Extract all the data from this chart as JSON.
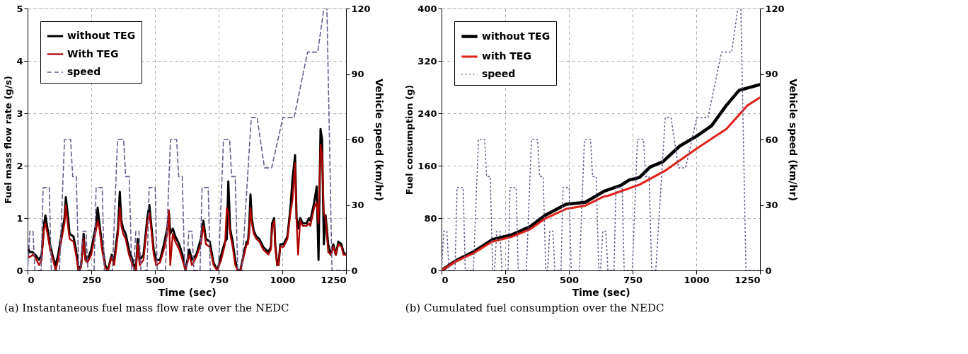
{
  "chart_data": [
    {
      "type": "line",
      "xlabel": "Time (sec)",
      "ylabel": "Fuel mass flow rate (g/s)",
      "y2label": "Vehicle speed (km/hr)",
      "annotations": [
        "(a) Instantaneous fuel mass flow rate over the NEDC"
      ],
      "xlim": [
        0,
        1250
      ],
      "xticks": [
        0,
        250,
        500,
        750,
        1000,
        1250
      ],
      "ylim": [
        0,
        5
      ],
      "yticks": [
        0,
        1,
        2,
        3,
        4,
        5
      ],
      "y2lim": [
        0,
        120
      ],
      "y2ticks": [
        0,
        30,
        60,
        90,
        120
      ],
      "grid": true,
      "legend": "top left",
      "marker": "none",
      "series": [
        {
          "name": "without TEG",
          "color": "#000000",
          "line_style": "solid",
          "x": [
            0,
            8,
            20,
            30,
            45,
            55,
            65,
            70,
            78,
            88,
            100,
            110,
            120,
            130,
            145,
            150,
            157,
            165,
            180,
            190,
            200,
            210,
            220,
            226,
            235,
            250,
            270,
            275,
            282,
            292,
            305,
            315,
            330,
            340,
            355,
            362,
            368,
            375,
            385,
            398,
            412,
            425,
            432,
            440,
            455,
            470,
            478,
            485,
            495,
            505,
            520,
            535,
            548,
            555,
            560,
            570,
            580,
            595,
            608,
            620,
            635,
            645,
            662,
            680,
            690,
            700,
            715,
            730,
            745,
            760,
            775,
            782,
            788,
            795,
            805,
            815,
            825,
            835,
            848,
            860,
            865,
            870,
            875,
            880,
            888,
            898,
            910,
            925,
            945,
            955,
            960,
            968,
            972,
            980,
            985,
            992,
            1005,
            1020,
            1032,
            1040,
            1050,
            1056,
            1062,
            1070,
            1080,
            1095,
            1105,
            1110,
            1125,
            1135,
            1142,
            1150,
            1156,
            1163,
            1170,
            1180,
            1190,
            1200,
            1210,
            1220,
            1232,
            1240,
            1250
          ],
          "values": [
            0.45,
            0.35,
            0.35,
            0.3,
            0.2,
            0.3,
            0.9,
            1.05,
            0.8,
            0.5,
            0.25,
            0.1,
            0.3,
            0.6,
            1.0,
            1.4,
            1.1,
            0.7,
            0.65,
            0.4,
            0.0,
            0.1,
            0.7,
            0.3,
            0.2,
            0.4,
            0.9,
            1.2,
            0.9,
            0.5,
            0.1,
            0.0,
            0.3,
            0.2,
            0.8,
            1.5,
            0.95,
            0.8,
            0.7,
            0.4,
            0.2,
            0.0,
            0.6,
            0.2,
            0.3,
            1.0,
            1.25,
            0.9,
            0.4,
            0.2,
            0.2,
            0.5,
            0.8,
            1.1,
            0.7,
            0.8,
            0.65,
            0.5,
            0.3,
            0.0,
            0.4,
            0.2,
            0.3,
            0.6,
            0.95,
            0.6,
            0.55,
            0.15,
            0.0,
            0.3,
            0.55,
            0.6,
            1.7,
            0.8,
            0.55,
            0.2,
            0.0,
            0.0,
            0.3,
            0.55,
            0.55,
            0.85,
            1.45,
            1.0,
            0.75,
            0.65,
            0.6,
            0.45,
            0.35,
            0.45,
            0.9,
            1.0,
            0.5,
            0.1,
            0.1,
            0.5,
            0.5,
            0.65,
            1.2,
            1.75,
            2.2,
            1.0,
            0.8,
            1.0,
            0.9,
            0.9,
            1.0,
            0.95,
            1.3,
            1.6,
            0.2,
            2.7,
            2.5,
            0.5,
            1.05,
            0.5,
            0.3,
            0.5,
            0.3,
            0.55,
            0.5,
            0.35,
            0.3
          ]
        },
        {
          "name": "With TEG",
          "color": "#b00000",
          "line_style": "solid",
          "x": [
            0,
            8,
            20,
            30,
            45,
            55,
            65,
            70,
            78,
            88,
            100,
            110,
            120,
            130,
            145,
            150,
            157,
            165,
            180,
            190,
            200,
            210,
            220,
            226,
            235,
            250,
            270,
            275,
            282,
            292,
            305,
            315,
            330,
            340,
            355,
            362,
            368,
            375,
            385,
            398,
            412,
            425,
            432,
            440,
            455,
            470,
            478,
            485,
            495,
            505,
            520,
            535,
            548,
            555,
            560,
            570,
            580,
            595,
            608,
            620,
            635,
            645,
            662,
            680,
            690,
            700,
            715,
            730,
            745,
            760,
            775,
            782,
            788,
            795,
            805,
            815,
            825,
            835,
            848,
            860,
            865,
            870,
            875,
            880,
            888,
            898,
            910,
            925,
            945,
            955,
            960,
            968,
            972,
            980,
            985,
            992,
            1005,
            1020,
            1032,
            1040,
            1050,
            1056,
            1062,
            1070,
            1080,
            1095,
            1105,
            1110,
            1125,
            1135,
            1142,
            1150,
            1156,
            1163,
            1170,
            1180,
            1190,
            1200,
            1210,
            1220,
            1232,
            1240,
            1250
          ],
          "values": [
            0.3,
            0.25,
            0.3,
            0.25,
            0.1,
            0.2,
            0.8,
            0.9,
            0.7,
            0.4,
            0.2,
            0.0,
            0.2,
            0.5,
            0.9,
            1.25,
            0.9,
            0.6,
            0.55,
            0.3,
            0.0,
            0.05,
            0.6,
            0.2,
            0.15,
            0.3,
            0.8,
            0.95,
            0.8,
            0.4,
            0.05,
            0.0,
            0.25,
            0.1,
            0.7,
            1.2,
            0.85,
            0.7,
            0.6,
            0.3,
            0.1,
            0.0,
            0.5,
            0.1,
            0.2,
            0.9,
            1.1,
            0.8,
            0.3,
            0.1,
            0.15,
            0.4,
            0.7,
            1.15,
            0.1,
            0.7,
            0.55,
            0.4,
            0.2,
            0.0,
            0.3,
            0.1,
            0.25,
            0.5,
            0.85,
            0.5,
            0.45,
            0.1,
            0.0,
            0.2,
            0.5,
            1.2,
            1.1,
            0.7,
            0.45,
            0.1,
            0.0,
            0.0,
            0.25,
            0.5,
            0.5,
            0.7,
            1.2,
            0.9,
            0.7,
            0.6,
            0.55,
            0.4,
            0.3,
            0.4,
            0.8,
            0.95,
            0.45,
            0.1,
            0.1,
            0.45,
            0.45,
            0.6,
            1.1,
            1.35,
            2.05,
            0.9,
            0.3,
            0.95,
            0.85,
            0.85,
            0.9,
            0.85,
            1.2,
            1.3,
            0.9,
            2.4,
            2.2,
            1.1,
            1.0,
            0.35,
            0.3,
            0.45,
            0.3,
            0.5,
            0.45,
            0.3,
            0.3
          ]
        },
        {
          "name": "speed",
          "color": "#6b5b8f",
          "line_style": "dashed",
          "axis": "y2",
          "x": [
            0,
            9,
            21,
            29,
            53,
            61,
            85,
            93,
            125,
            145,
            169,
            177,
            191,
            201,
            208,
            217,
            229,
            237,
            261,
            269,
            293,
            301,
            333,
            353,
            377,
            385,
            399,
            409,
            416,
            425,
            437,
            445,
            469,
            477,
            501,
            509,
            541,
            561,
            585,
            593,
            607,
            617,
            624,
            633,
            645,
            653,
            677,
            685,
            709,
            717,
            749,
            769,
            793,
            801,
            815,
            825,
            841,
            878,
            901,
            930,
            958,
            1002,
            1046,
            1099,
            1139,
            1163,
            1175,
            1195,
            1250
          ],
          "values": [
            0,
            18,
            18,
            0,
            0,
            38,
            38,
            0,
            0,
            60,
            60,
            43,
            43,
            0,
            0,
            18,
            18,
            0,
            0,
            38,
            38,
            0,
            0,
            60,
            60,
            43,
            43,
            0,
            0,
            18,
            18,
            0,
            0,
            38,
            38,
            0,
            0,
            60,
            60,
            43,
            43,
            0,
            0,
            18,
            18,
            0,
            0,
            38,
            38,
            0,
            0,
            60,
            60,
            43,
            43,
            0,
            0,
            70,
            70,
            47,
            47,
            70,
            70,
            100,
            100,
            120,
            120,
            0,
            0
          ]
        }
      ]
    },
    {
      "type": "line",
      "xlabel": "Time (sec)",
      "ylabel": "Fuel consumption (g)",
      "y2label": "Vehicle speed (km/hr)",
      "annotations": [
        "(b) Cumulated fuel consumption over the NEDC"
      ],
      "xlim": [
        0,
        1250
      ],
      "xticks": [
        0,
        250,
        500,
        750,
        1000,
        1250
      ],
      "ylim": [
        0,
        400
      ],
      "yticks": [
        0,
        80,
        160,
        240,
        320,
        400
      ],
      "y2lim": [
        0,
        120
      ],
      "y2ticks": [
        0,
        30,
        60,
        90,
        120
      ],
      "grid": true,
      "legend": "top left",
      "marker": "none",
      "series": [
        {
          "name": "without TEG",
          "color": "#000000",
          "line_style": "solid",
          "x": [
            0,
            57,
            124,
            199,
            273,
            348,
            406,
            489,
            564,
            638,
            704,
            736,
            777,
            819,
            869,
            935,
            1001,
            1060,
            1118,
            1168,
            1250
          ],
          "values": [
            0,
            15,
            28,
            47,
            54,
            67,
            84,
            101,
            104,
            121,
            130,
            138,
            142,
            158,
            166,
            190,
            205,
            221,
            252,
            275,
            284
          ]
        },
        {
          "name": "with TEG",
          "color": "#e0201a",
          "line_style": "solid",
          "x": [
            0,
            57,
            124,
            199,
            273,
            348,
            406,
            489,
            564,
            638,
            654,
            777,
            876,
            1001,
            1118,
            1201,
            1250
          ],
          "values": [
            0,
            14,
            26,
            44,
            51,
            63,
            79,
            94,
            99,
            113,
            114,
            131,
            152,
            186,
            216,
            252,
            264
          ]
        },
        {
          "name": "speed",
          "color": "#6b5b8f",
          "line_style": "dotted",
          "axis": "y2",
          "x": [
            0,
            9,
            21,
            29,
            53,
            61,
            85,
            93,
            125,
            145,
            169,
            177,
            191,
            201,
            208,
            217,
            229,
            237,
            261,
            269,
            293,
            301,
            333,
            353,
            377,
            385,
            399,
            409,
            416,
            425,
            437,
            445,
            469,
            477,
            501,
            509,
            541,
            561,
            585,
            593,
            607,
            617,
            624,
            633,
            645,
            653,
            677,
            685,
            709,
            717,
            749,
            769,
            793,
            801,
            815,
            825,
            841,
            878,
            901,
            930,
            958,
            1002,
            1046,
            1099,
            1139,
            1163,
            1175,
            1195,
            1250
          ],
          "values": [
            0,
            18,
            18,
            0,
            0,
            38,
            38,
            0,
            0,
            60,
            60,
            43,
            43,
            0,
            0,
            18,
            18,
            0,
            0,
            38,
            38,
            0,
            0,
            60,
            60,
            43,
            43,
            0,
            0,
            18,
            18,
            0,
            0,
            38,
            38,
            0,
            0,
            60,
            60,
            43,
            43,
            0,
            0,
            18,
            18,
            0,
            0,
            38,
            38,
            0,
            0,
            60,
            60,
            43,
            43,
            0,
            0,
            70,
            70,
            47,
            47,
            70,
            70,
            100,
            100,
            120,
            120,
            0,
            0
          ]
        }
      ]
    }
  ]
}
